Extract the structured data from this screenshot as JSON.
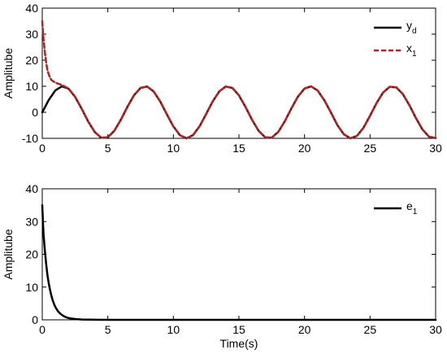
{
  "chart_data": [
    {
      "type": "line",
      "xlabel": "",
      "ylabel": "Amplitube",
      "xlim": [
        0,
        30
      ],
      "ylim": [
        -10,
        40
      ],
      "xticks": [
        "0",
        "5",
        "10",
        "15",
        "20",
        "25",
        "30"
      ],
      "yticks": [
        "-10",
        "0",
        "10",
        "20",
        "30",
        "40"
      ],
      "grid": false,
      "legend_position": "top-right",
      "series": [
        {
          "name": "y",
          "name_sub": "d",
          "color": "#000000",
          "dash": "solid",
          "x": [
            0,
            0.5,
            1,
            1.5,
            2,
            2.5,
            3,
            3.5,
            4,
            4.5,
            5,
            5.5,
            6,
            6.5,
            7,
            7.5,
            8,
            8.5,
            9,
            9.5,
            10,
            10.5,
            11,
            11.5,
            12,
            12.5,
            13,
            13.5,
            14,
            14.5,
            15,
            15.5,
            16,
            16.5,
            17,
            17.5,
            18,
            18.5,
            19,
            19.5,
            20,
            20.5,
            21,
            21.5,
            22,
            22.5,
            23,
            23.5,
            24,
            24.5,
            25,
            25.5,
            26,
            26.5,
            27,
            27.5,
            28,
            28.5,
            29,
            29.5,
            30
          ],
          "y": [
            0,
            4.79,
            8.41,
            9.97,
            9.09,
            5.98,
            1.41,
            -3.51,
            -7.57,
            -9.78,
            -9.59,
            -7.06,
            -2.79,
            2.15,
            6.57,
            9.38,
            9.89,
            7.98,
            4.12,
            -0.75,
            -5.44,
            -8.79,
            -10.0,
            -8.75,
            -5.37,
            -0.66,
            4.2,
            8.03,
            9.91,
            9.35,
            6.5,
            2.06,
            -2.88,
            -7.12,
            -9.61,
            -9.76,
            -7.51,
            -3.43,
            1.5,
            6.04,
            9.13,
            9.96,
            8.37,
            4.72,
            0.09,
            -4.87,
            -8.46,
            -9.98,
            -9.06,
            -5.92,
            -1.32,
            3.59,
            7.63,
            9.8,
            9.56,
            7.0,
            2.7,
            -2.24,
            -6.63,
            -9.4,
            -9.88
          ]
        },
        {
          "name": "x",
          "name_sub": "1",
          "color": "#b22222",
          "dash": "dashed",
          "x": [
            0,
            0.05,
            0.1,
            0.2,
            0.3,
            0.4,
            0.5,
            0.6,
            0.7,
            0.8,
            1,
            1.2,
            1.5,
            2,
            2.5,
            3,
            3.5,
            4,
            4.5,
            5,
            5.5,
            6,
            6.5,
            7,
            7.5,
            8,
            8.5,
            9,
            9.5,
            10,
            10.5,
            11,
            11.5,
            12,
            12.5,
            13,
            13.5,
            14,
            14.5,
            15,
            15.5,
            16,
            16.5,
            17,
            17.5,
            18,
            18.5,
            19,
            19.5,
            20,
            20.5,
            21,
            21.5,
            22,
            22.5,
            23,
            23.5,
            24,
            24.5,
            25,
            25.5,
            26,
            26.5,
            27,
            27.5,
            28,
            28.5,
            29,
            29.5,
            30
          ],
          "y": [
            35,
            31,
            28,
            23,
            19,
            16,
            14.5,
            13.2,
            12.4,
            12,
            11.4,
            11,
            10.5,
            9.09,
            5.98,
            1.41,
            -3.51,
            -7.57,
            -9.78,
            -9.59,
            -7.06,
            -2.79,
            2.15,
            6.57,
            9.38,
            9.89,
            7.98,
            4.12,
            -0.75,
            -5.44,
            -8.79,
            -10.0,
            -8.75,
            -5.37,
            -0.66,
            4.2,
            8.03,
            9.91,
            9.35,
            6.5,
            2.06,
            -2.88,
            -7.12,
            -9.61,
            -9.76,
            -7.51,
            -3.43,
            1.5,
            6.04,
            9.13,
            9.96,
            8.37,
            4.72,
            0.09,
            -4.87,
            -8.46,
            -9.98,
            -9.06,
            -5.92,
            -1.32,
            3.59,
            7.63,
            9.8,
            9.56,
            7.0,
            2.7,
            -2.24,
            -6.63,
            -9.4,
            -9.88
          ]
        }
      ]
    },
    {
      "type": "line",
      "xlabel": "Time(s)",
      "ylabel": "Amplitube",
      "xlim": [
        0,
        30
      ],
      "ylim": [
        0,
        40
      ],
      "xticks": [
        "0",
        "5",
        "10",
        "15",
        "20",
        "25",
        "30"
      ],
      "yticks": [
        "0",
        "10",
        "20",
        "30",
        "40"
      ],
      "grid": false,
      "legend_position": "top-right",
      "series": [
        {
          "name": "e",
          "name_sub": "1",
          "color": "#000000",
          "dash": "solid",
          "x": [
            0,
            0.05,
            0.1,
            0.2,
            0.3,
            0.4,
            0.5,
            0.6,
            0.7,
            0.8,
            0.9,
            1.0,
            1.2,
            1.4,
            1.6,
            1.8,
            2.0,
            2.2,
            2.5,
            3,
            5,
            10,
            15,
            20,
            25,
            30
          ],
          "y": [
            35,
            30,
            26,
            21,
            17,
            13.5,
            11,
            9,
            7.3,
            5.9,
            4.8,
            3.9,
            2.6,
            1.8,
            1.2,
            0.8,
            0.55,
            0.4,
            0.25,
            0.1,
            0,
            0,
            0,
            0,
            0,
            0
          ]
        }
      ]
    }
  ]
}
